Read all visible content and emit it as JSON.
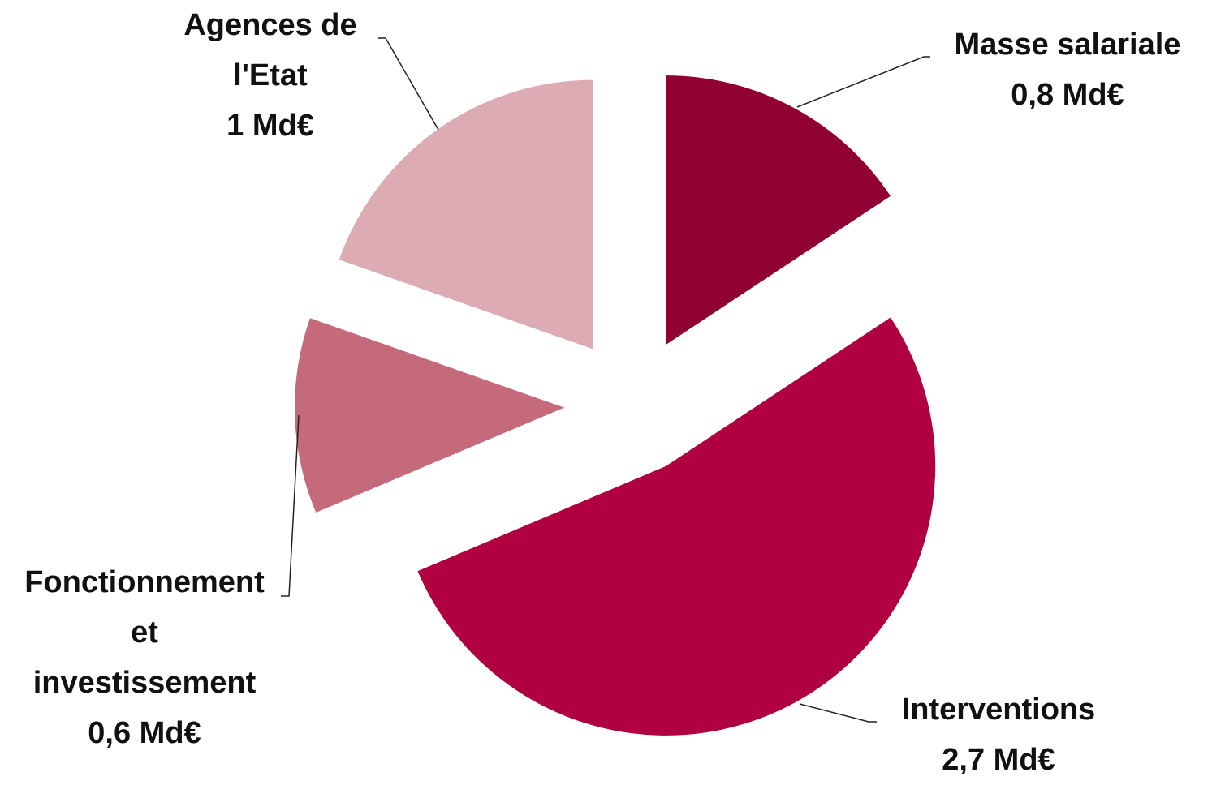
{
  "chart_data": {
    "type": "pie",
    "categories": [
      "Masse salariale",
      "Interventions",
      "Fonctionnement et investissement",
      "Agences de l'Etat"
    ],
    "values": [
      0.8,
      2.7,
      0.6,
      1
    ],
    "value_labels": [
      "0,8 Md€",
      "2,7 Md€",
      "0,6 Md€",
      "1 Md€"
    ],
    "colors": [
      "#910033",
      "#b00040",
      "#c56a7a",
      "#dcabb3"
    ]
  }
}
